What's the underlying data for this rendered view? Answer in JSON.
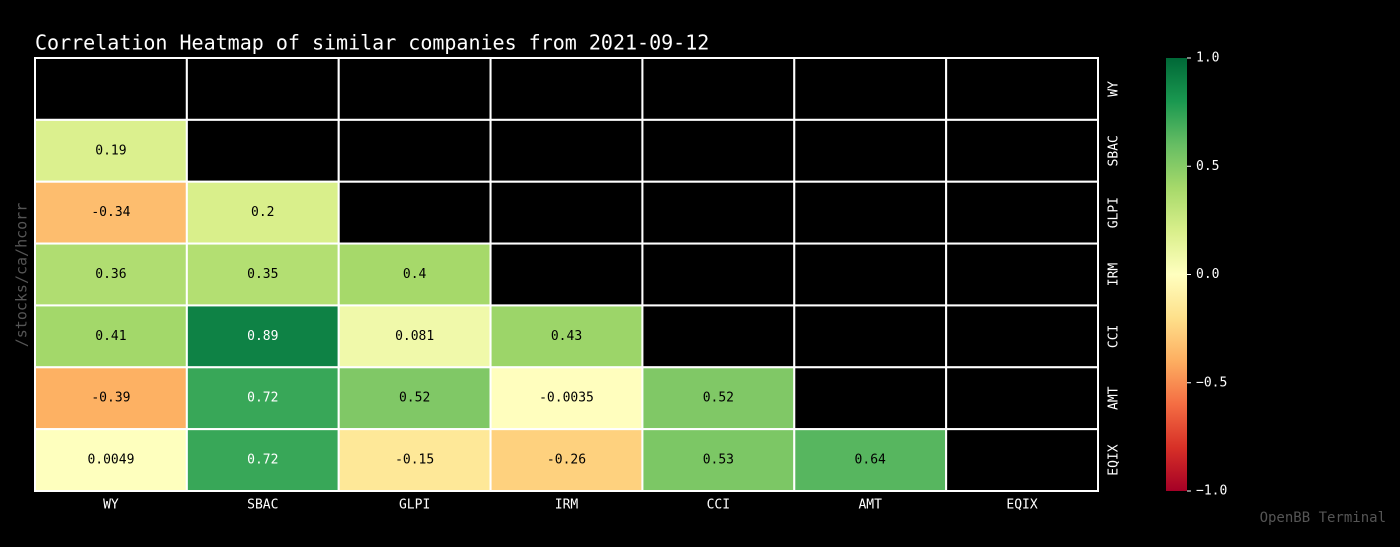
{
  "chart_data": {
    "type": "heatmap",
    "title": "Correlation Heatmap of similar companies from 2021-09-12",
    "x": [
      "WY",
      "SBAC",
      "GLPI",
      "IRM",
      "CCI",
      "AMT",
      "EQIX"
    ],
    "y": [
      "WY",
      "SBAC",
      "GLPI",
      "IRM",
      "CCI",
      "AMT",
      "EQIX"
    ],
    "z": [
      [
        null,
        null,
        null,
        null,
        null,
        null,
        null
      ],
      [
        0.19,
        null,
        null,
        null,
        null,
        null,
        null
      ],
      [
        -0.34,
        0.2,
        null,
        null,
        null,
        null,
        null
      ],
      [
        0.36,
        0.35,
        0.4,
        null,
        null,
        null,
        null
      ],
      [
        0.41,
        0.89,
        0.081,
        0.43,
        null,
        null,
        null
      ],
      [
        -0.39,
        0.72,
        0.52,
        -0.0035,
        0.52,
        null,
        null
      ],
      [
        0.0049,
        0.72,
        -0.15,
        -0.26,
        0.53,
        0.64,
        null
      ]
    ],
    "colormap": [
      "#a50026",
      "#d73027",
      "#f46d43",
      "#fdae61",
      "#fee08b",
      "#ffffbf",
      "#d9ef8b",
      "#a6d96a",
      "#66bd63",
      "#1a9850",
      "#006837"
    ],
    "zlim": [
      -1,
      1
    ],
    "zticks": [
      {
        "value": 1,
        "label": "1.0"
      },
      {
        "value": 0.5,
        "label": "0.5"
      },
      {
        "value": 0,
        "label": "0.0"
      },
      {
        "value": -0.5,
        "label": "−0.5"
      },
      {
        "value": -1,
        "label": "−1.0"
      }
    ],
    "side_label": "/stocks/ca/hcorr",
    "watermark": "OpenBB Terminal"
  }
}
